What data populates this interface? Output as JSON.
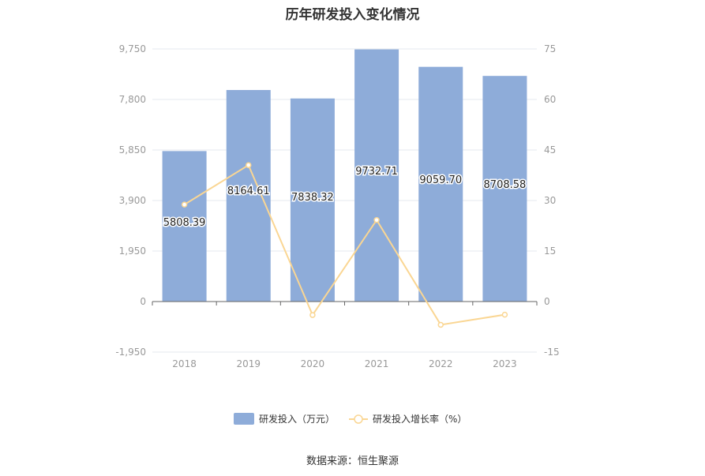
{
  "page": {
    "title": "历年研发投入变化情况",
    "source": "数据来源：恒生聚源"
  },
  "colors": {
    "bar": "#8eacd9",
    "line": "#fad693",
    "grid": "#e6e9ef",
    "axis": "#999999",
    "text": "#333333"
  },
  "chart_data": {
    "type": "bar+line",
    "title": "历年研发投入变化情况",
    "categories": [
      "2018",
      "2019",
      "2020",
      "2021",
      "2022",
      "2023"
    ],
    "series": [
      {
        "name": "研发投入（万元）",
        "type": "bar",
        "axis": "left",
        "values": [
          5808.39,
          8164.61,
          7838.32,
          9732.71,
          9059.7,
          8708.58
        ],
        "labels": [
          "5808.39",
          "8164.61",
          "7838.32",
          "9732.71",
          "9059.70",
          "8708.58"
        ]
      },
      {
        "name": "研发投入增长率（%）",
        "type": "line",
        "axis": "right",
        "values": [
          28.8,
          40.5,
          -4.0,
          24.2,
          -6.9,
          -3.9
        ]
      }
    ],
    "y_left": {
      "min": -1950,
      "max": 9750,
      "ticks": [
        -1950,
        0,
        1950,
        3900,
        5850,
        7800,
        9750
      ],
      "tick_labels": [
        "-1,950",
        "0",
        "1,950",
        "3,900",
        "5,850",
        "7,800",
        "9,750"
      ]
    },
    "y_right": {
      "min": -15,
      "max": 75,
      "ticks": [
        -15,
        0,
        15,
        30,
        45,
        60,
        75
      ],
      "tick_labels": [
        "-15",
        "0",
        "15",
        "30",
        "45",
        "60",
        "75"
      ]
    },
    "grid": true,
    "legend_position": "bottom"
  }
}
